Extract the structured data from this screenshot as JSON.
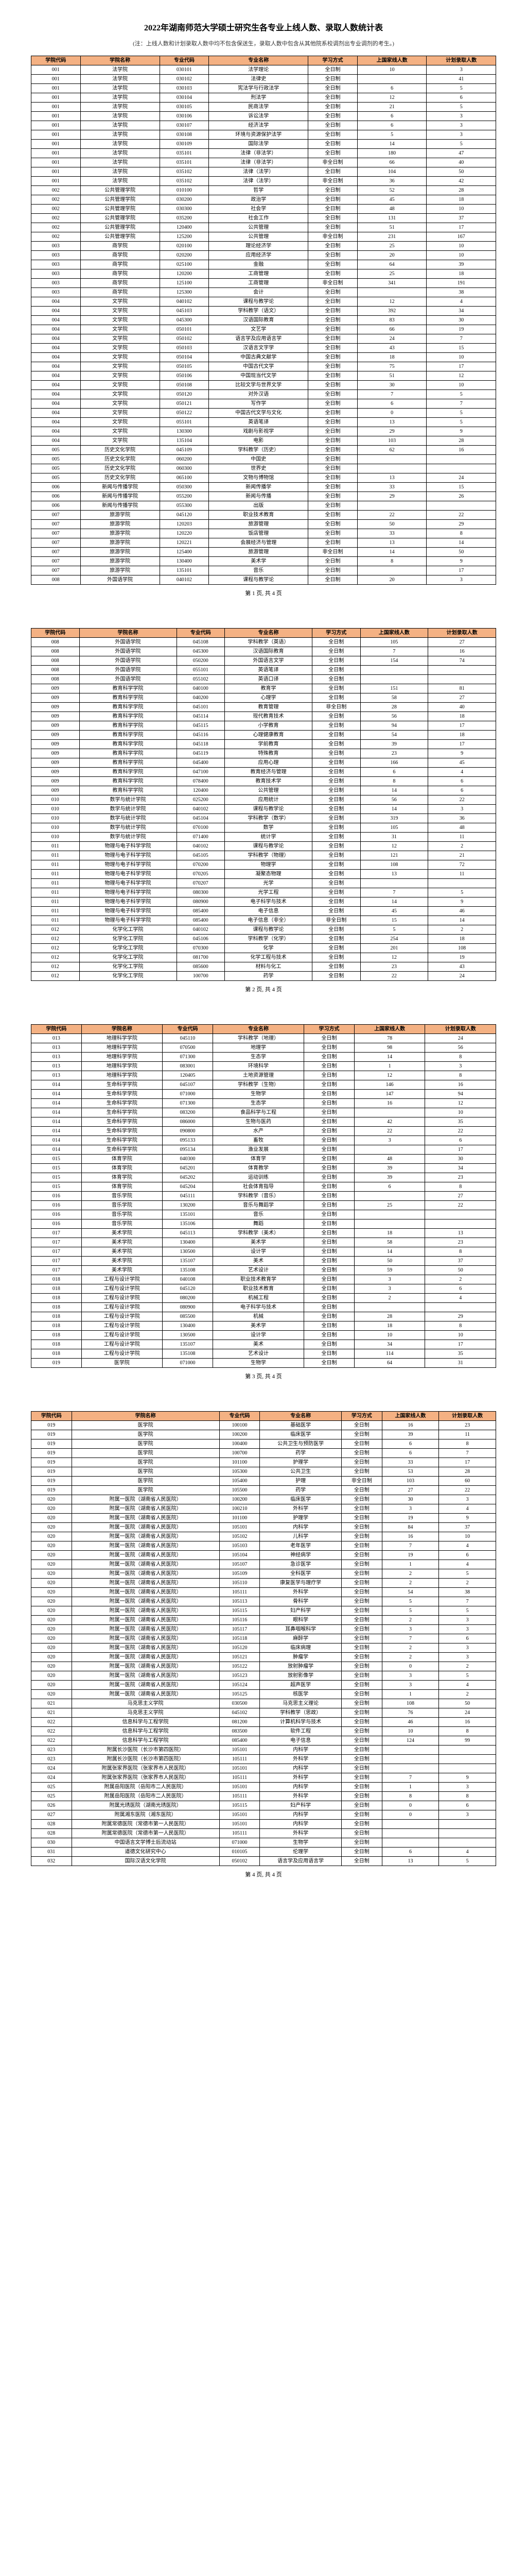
{
  "title": "2022年湖南师范大学硕士研究生各专业上线人数、录取人数统计表",
  "note": "(注：上线人数和计划录取人数中均不包含保送生，录取人数中包含从其他院系校调剂出专业调剂的考生。)",
  "footer_prefix": "第",
  "footer_suffix": "页, 共 4 页",
  "headers": {
    "col1": "学院代码",
    "col2": "学院名称",
    "col3": "专业代码",
    "col4": "专业名称",
    "col5": "学习方式",
    "col6": "上国家线人数",
    "col7": "计划录取人数"
  },
  "accent_color": "#f4b183",
  "border_color": "#000000",
  "rows_page1": [
    [
      "001",
      "法学院",
      "030101",
      "法学理论",
      "全日制",
      "10",
      "3"
    ],
    [
      "001",
      "法学院",
      "030102",
      "法律史",
      "全日制",
      "",
      "41"
    ],
    [
      "001",
      "法学院",
      "030103",
      "宪法学与行政法学",
      "全日制",
      "6",
      "5"
    ],
    [
      "001",
      "法学院",
      "030104",
      "刑法学",
      "全日制",
      "12",
      "6"
    ],
    [
      "001",
      "法学院",
      "030105",
      "民商法学",
      "全日制",
      "21",
      "5"
    ],
    [
      "001",
      "法学院",
      "030106",
      "诉讼法学",
      "全日制",
      "6",
      "3"
    ],
    [
      "001",
      "法学院",
      "030107",
      "经济法学",
      "全日制",
      "6",
      "3"
    ],
    [
      "001",
      "法学院",
      "030108",
      "环境与资源保护法学",
      "全日制",
      "5",
      "3"
    ],
    [
      "001",
      "法学院",
      "030109",
      "国际法学",
      "全日制",
      "14",
      "5"
    ],
    [
      "001",
      "法学院",
      "035101",
      "法律（非法学）",
      "全日制",
      "180",
      "47"
    ],
    [
      "001",
      "法学院",
      "035101",
      "法律（非法学）",
      "非全日制",
      "66",
      "40"
    ],
    [
      "001",
      "法学院",
      "035102",
      "法律（法学）",
      "全日制",
      "104",
      "50"
    ],
    [
      "001",
      "法学院",
      "035102",
      "法律（法学）",
      "非全日制",
      "36",
      "42"
    ],
    [
      "002",
      "公共管理学院",
      "010100",
      "哲学",
      "全日制",
      "52",
      "28"
    ],
    [
      "002",
      "公共管理学院",
      "030200",
      "政治学",
      "全日制",
      "45",
      "18"
    ],
    [
      "002",
      "公共管理学院",
      "030300",
      "社会学",
      "全日制",
      "48",
      "10"
    ],
    [
      "002",
      "公共管理学院",
      "035200",
      "社会工作",
      "全日制",
      "131",
      "37"
    ],
    [
      "002",
      "公共管理学院",
      "120400",
      "公共管理",
      "全日制",
      "51",
      "17"
    ],
    [
      "002",
      "公共管理学院",
      "125200",
      "公共管理",
      "非全日制",
      "231",
      "167"
    ],
    [
      "003",
      "商学院",
      "020100",
      "理论经济学",
      "全日制",
      "25",
      "10"
    ],
    [
      "003",
      "商学院",
      "020200",
      "应用经济学",
      "全日制",
      "20",
      "10"
    ],
    [
      "003",
      "商学院",
      "025100",
      "金融",
      "全日制",
      "64",
      "39"
    ],
    [
      "003",
      "商学院",
      "120200",
      "工商管理",
      "全日制",
      "25",
      "18"
    ],
    [
      "003",
      "商学院",
      "125100",
      "工商管理",
      "非全日制",
      "341",
      "191"
    ],
    [
      "003",
      "商学院",
      "125300",
      "会计",
      "全日制",
      "",
      "38"
    ],
    [
      "004",
      "文学院",
      "040102",
      "课程与教学论",
      "全日制",
      "12",
      "4"
    ],
    [
      "004",
      "文学院",
      "045103",
      "学科教学（语文）",
      "全日制",
      "392",
      "34"
    ],
    [
      "004",
      "文学院",
      "045300",
      "汉语国际教育",
      "全日制",
      "83",
      "30"
    ],
    [
      "004",
      "文学院",
      "050101",
      "文艺学",
      "全日制",
      "66",
      "19"
    ],
    [
      "004",
      "文学院",
      "050102",
      "语言学及应用语言学",
      "全日制",
      "24",
      "7"
    ],
    [
      "004",
      "文学院",
      "050103",
      "汉语言文字学",
      "全日制",
      "43",
      "15"
    ],
    [
      "004",
      "文学院",
      "050104",
      "中国古典文献学",
      "全日制",
      "18",
      "10"
    ],
    [
      "004",
      "文学院",
      "050105",
      "中国古代文学",
      "全日制",
      "75",
      "17"
    ],
    [
      "004",
      "文学院",
      "050106",
      "中国现当代文学",
      "全日制",
      "51",
      "12"
    ],
    [
      "004",
      "文学院",
      "050108",
      "比较文学与世界文学",
      "全日制",
      "30",
      "10"
    ],
    [
      "004",
      "文学院",
      "050120",
      "对外汉语",
      "全日制",
      "7",
      "5"
    ],
    [
      "004",
      "文学院",
      "050121",
      "写作学",
      "全日制",
      "6",
      "7"
    ],
    [
      "004",
      "文学院",
      "050122",
      "中国古代文学与文化",
      "全日制",
      "0",
      "5"
    ],
    [
      "004",
      "文学院",
      "055101",
      "英语笔译",
      "全日制",
      "13",
      "5"
    ],
    [
      "004",
      "文学院",
      "130300",
      "戏剧与影视学",
      "全日制",
      "29",
      "9"
    ],
    [
      "004",
      "文学院",
      "135104",
      "电影",
      "全日制",
      "103",
      "28"
    ],
    [
      "005",
      "历史文化学院",
      "045109",
      "学科教学（历史）",
      "全日制",
      "62",
      "16"
    ],
    [
      "005",
      "历史文化学院",
      "060200",
      "中国史",
      "全日制",
      "",
      ""
    ],
    [
      "005",
      "历史文化学院",
      "060300",
      "世界史",
      "全日制",
      "",
      ""
    ],
    [
      "005",
      "历史文化学院",
      "065100",
      "文物与博物馆",
      "全日制",
      "13",
      "24"
    ],
    [
      "006",
      "新闻与传播学院",
      "050300",
      "新闻传播学",
      "全日制",
      "33",
      "15"
    ],
    [
      "006",
      "新闻与传播学院",
      "055200",
      "新闻与传播",
      "全日制",
      "29",
      "26"
    ],
    [
      "006",
      "新闻与传播学院",
      "055300",
      "出版",
      "全日制",
      "",
      ""
    ],
    [
      "007",
      "旅游学院",
      "045120",
      "职业技术教育",
      "全日制",
      "22",
      "22"
    ],
    [
      "007",
      "旅游学院",
      "120203",
      "旅游管理",
      "全日制",
      "50",
      "29"
    ],
    [
      "007",
      "旅游学院",
      "120220",
      "饭店管理",
      "全日制",
      "33",
      "8"
    ],
    [
      "007",
      "旅游学院",
      "120221",
      "会展经济与管理",
      "全日制",
      "13",
      "14"
    ],
    [
      "007",
      "旅游学院",
      "125400",
      "旅游管理",
      "非全日制",
      "14",
      "50"
    ],
    [
      "007",
      "旅游学院",
      "130400",
      "美术学",
      "全日制",
      "8",
      "9"
    ],
    [
      "007",
      "旅游学院",
      "135101",
      "音乐",
      "全日制",
      "",
      "17"
    ],
    [
      "008",
      "外国语学院",
      "040102",
      "课程与教学论",
      "全日制",
      "20",
      "3"
    ]
  ],
  "rows_page2": [
    [
      "008",
      "外国语学院",
      "045108",
      "学科教学（英语）",
      "全日制",
      "105",
      "27"
    ],
    [
      "008",
      "外国语学院",
      "045300",
      "汉语国际教育",
      "全日制",
      "7",
      "16"
    ],
    [
      "008",
      "外国语学院",
      "050200",
      "外国语言文学",
      "全日制",
      "154",
      "74"
    ],
    [
      "008",
      "外国语学院",
      "055101",
      "英语笔译",
      "全日制",
      "",
      ""
    ],
    [
      "008",
      "外国语学院",
      "055102",
      "英语口译",
      "全日制",
      "",
      ""
    ],
    [
      "009",
      "教育科学学院",
      "040100",
      "教育学",
      "全日制",
      "151",
      "81"
    ],
    [
      "009",
      "教育科学学院",
      "040200",
      "心理学",
      "全日制",
      "58",
      "27"
    ],
    [
      "009",
      "教育科学学院",
      "045101",
      "教育管理",
      "非全日制",
      "28",
      "40"
    ],
    [
      "009",
      "教育科学学院",
      "045114",
      "现代教育技术",
      "全日制",
      "56",
      "18"
    ],
    [
      "009",
      "教育科学学院",
      "045115",
      "小学教育",
      "全日制",
      "94",
      "17"
    ],
    [
      "009",
      "教育科学学院",
      "045116",
      "心理健康教育",
      "全日制",
      "54",
      "18"
    ],
    [
      "009",
      "教育科学学院",
      "045118",
      "学前教育",
      "全日制",
      "39",
      "17"
    ],
    [
      "009",
      "教育科学学院",
      "045119",
      "特殊教育",
      "全日制",
      "23",
      "9"
    ],
    [
      "009",
      "教育科学学院",
      "045400",
      "应用心理",
      "全日制",
      "166",
      "45"
    ],
    [
      "009",
      "教育科学学院",
      "047100",
      "教育经济与管理",
      "全日制",
      "6",
      "4"
    ],
    [
      "009",
      "教育科学学院",
      "078400",
      "教育技术学",
      "全日制",
      "8",
      "6"
    ],
    [
      "009",
      "教育科学学院",
      "120400",
      "公共管理",
      "全日制",
      "14",
      "6"
    ],
    [
      "010",
      "数学与统计学院",
      "025200",
      "应用统计",
      "全日制",
      "56",
      "22"
    ],
    [
      "010",
      "数学与统计学院",
      "040102",
      "课程与教学论",
      "全日制",
      "14",
      "3"
    ],
    [
      "010",
      "数学与统计学院",
      "045104",
      "学科教学（数学）",
      "全日制",
      "319",
      "36"
    ],
    [
      "010",
      "数学与统计学院",
      "070100",
      "数学",
      "全日制",
      "105",
      "48"
    ],
    [
      "010",
      "数学与统计学院",
      "071400",
      "统计学",
      "全日制",
      "31",
      "11"
    ],
    [
      "011",
      "物理与电子科学学院",
      "040102",
      "课程与教学论",
      "全日制",
      "12",
      "2"
    ],
    [
      "011",
      "物理与电子科学学院",
      "045105",
      "学科教学（物理）",
      "全日制",
      "121",
      "21"
    ],
    [
      "011",
      "物理与电子科学学院",
      "070200",
      "物理学",
      "全日制",
      "108",
      "72"
    ],
    [
      "011",
      "物理与电子科学学院",
      "070205",
      "凝聚态物理",
      "全日制",
      "13",
      "11"
    ],
    [
      "011",
      "物理与电子科学学院",
      "070207",
      "光学",
      "全日制",
      "",
      ""
    ],
    [
      "011",
      "物理与电子科学学院",
      "080300",
      "光学工程",
      "全日制",
      "7",
      "5"
    ],
    [
      "011",
      "物理与电子科学学院",
      "080900",
      "电子科学与技术",
      "全日制",
      "14",
      "9"
    ],
    [
      "011",
      "物理与电子科学学院",
      "085400",
      "电子信息",
      "全日制",
      "45",
      "46"
    ],
    [
      "011",
      "物理与电子科学学院",
      "085400",
      "电子信息（非全）",
      "非全日制",
      "15",
      "14"
    ],
    [
      "012",
      "化学化工学院",
      "040102",
      "课程与教学论",
      "全日制",
      "5",
      "2"
    ],
    [
      "012",
      "化学化工学院",
      "045106",
      "学科教学（化学）",
      "全日制",
      "254",
      "18"
    ],
    [
      "012",
      "化学化工学院",
      "070300",
      "化学",
      "全日制",
      "201",
      "108"
    ],
    [
      "012",
      "化学化工学院",
      "081700",
      "化学工程与技术",
      "全日制",
      "12",
      "19"
    ],
    [
      "012",
      "化学化工学院",
      "085600",
      "材料与化工",
      "全日制",
      "23",
      "43"
    ],
    [
      "012",
      "化学化工学院",
      "100700",
      "药学",
      "全日制",
      "22",
      "24"
    ]
  ],
  "rows_page3": [
    [
      "013",
      "地理科学学院",
      "045110",
      "学科教学（地理）",
      "全日制",
      "78",
      "24"
    ],
    [
      "013",
      "地理科学学院",
      "070500",
      "地理学",
      "全日制",
      "98",
      "56"
    ],
    [
      "013",
      "地理科学学院",
      "071300",
      "生态学",
      "全日制",
      "14",
      "8"
    ],
    [
      "013",
      "地理科学学院",
      "083001",
      "环境科学",
      "全日制",
      "1",
      "3"
    ],
    [
      "013",
      "地理科学学院",
      "120405",
      "土地资源管理",
      "全日制",
      "12",
      "8"
    ],
    [
      "014",
      "生命科学学院",
      "045107",
      "学科教学（生物）",
      "全日制",
      "146",
      "16"
    ],
    [
      "014",
      "生命科学学院",
      "071000",
      "生物学",
      "全日制",
      "147",
      "94"
    ],
    [
      "014",
      "生命科学学院",
      "071300",
      "生态学",
      "全日制",
      "16",
      "12"
    ],
    [
      "014",
      "生命科学学院",
      "083200",
      "食品科学与工程",
      "全日制",
      "",
      "10"
    ],
    [
      "014",
      "生命科学学院",
      "086000",
      "生物与医药",
      "全日制",
      "42",
      "35"
    ],
    [
      "014",
      "生命科学学院",
      "090800",
      "水产",
      "全日制",
      "22",
      "22"
    ],
    [
      "014",
      "生命科学学院",
      "095133",
      "畜牧",
      "全日制",
      "3",
      "6"
    ],
    [
      "014",
      "生命科学学院",
      "095134",
      "渔业发展",
      "全日制",
      "",
      "17"
    ],
    [
      "015",
      "体育学院",
      "040300",
      "体育学",
      "全日制",
      "48",
      "30"
    ],
    [
      "015",
      "体育学院",
      "045201",
      "体育教学",
      "全日制",
      "39",
      "34"
    ],
    [
      "015",
      "体育学院",
      "045202",
      "运动训练",
      "全日制",
      "39",
      "23"
    ],
    [
      "015",
      "体育学院",
      "045204",
      "社会体育指导",
      "全日制",
      "6",
      "8"
    ],
    [
      "016",
      "音乐学院",
      "045111",
      "学科教学（音乐）",
      "全日制",
      "",
      "27"
    ],
    [
      "016",
      "音乐学院",
      "130200",
      "音乐与舞蹈学",
      "全日制",
      "25",
      "22"
    ],
    [
      "016",
      "音乐学院",
      "135101",
      "音乐",
      "全日制",
      "",
      ""
    ],
    [
      "016",
      "音乐学院",
      "135106",
      "舞蹈",
      "全日制",
      "",
      ""
    ],
    [
      "017",
      "美术学院",
      "045113",
      "学科教学（美术）",
      "全日制",
      "18",
      "13"
    ],
    [
      "017",
      "美术学院",
      "130400",
      "美术学",
      "全日制",
      "58",
      "23"
    ],
    [
      "017",
      "美术学院",
      "130500",
      "设计学",
      "全日制",
      "14",
      "8"
    ],
    [
      "017",
      "美术学院",
      "135107",
      "美术",
      "全日制",
      "50",
      "37"
    ],
    [
      "017",
      "美术学院",
      "135108",
      "艺术设计",
      "全日制",
      "59",
      "50"
    ],
    [
      "018",
      "工程与设计学院",
      "040108",
      "职业技术教育学",
      "全日制",
      "3",
      "2"
    ],
    [
      "018",
      "工程与设计学院",
      "045120",
      "职业技术教育",
      "全日制",
      "3",
      "6"
    ],
    [
      "018",
      "工程与设计学院",
      "080200",
      "机械工程",
      "全日制",
      "2",
      "4"
    ],
    [
      "018",
      "工程与设计学院",
      "080900",
      "电子科学与技术",
      "全日制",
      "",
      ""
    ],
    [
      "018",
      "工程与设计学院",
      "085500",
      "机械",
      "全日制",
      "28",
      "29"
    ],
    [
      "018",
      "工程与设计学院",
      "130400",
      "美术学",
      "全日制",
      "18",
      "8"
    ],
    [
      "018",
      "工程与设计学院",
      "130500",
      "设计学",
      "全日制",
      "10",
      "10"
    ],
    [
      "018",
      "工程与设计学院",
      "135107",
      "美术",
      "全日制",
      "34",
      "17"
    ],
    [
      "018",
      "工程与设计学院",
      "135108",
      "艺术设计",
      "全日制",
      "114",
      "35"
    ],
    [
      "019",
      "医学院",
      "071000",
      "生物学",
      "全日制",
      "64",
      "31"
    ]
  ],
  "rows_page4": [
    [
      "019",
      "医学院",
      "100100",
      "基础医学",
      "全日制",
      "16",
      "23"
    ],
    [
      "019",
      "医学院",
      "100200",
      "临床医学",
      "全日制",
      "39",
      "11"
    ],
    [
      "019",
      "医学院",
      "100400",
      "公共卫生与预防医学",
      "全日制",
      "6",
      "8"
    ],
    [
      "019",
      "医学院",
      "100700",
      "药学",
      "全日制",
      "6",
      "7"
    ],
    [
      "019",
      "医学院",
      "101100",
      "护理学",
      "全日制",
      "33",
      "17"
    ],
    [
      "019",
      "医学院",
      "105300",
      "公共卫生",
      "全日制",
      "53",
      "28"
    ],
    [
      "019",
      "医学院",
      "105400",
      "护理",
      "非全日制",
      "103",
      "60"
    ],
    [
      "019",
      "医学院",
      "105500",
      "药学",
      "全日制",
      "27",
      "22"
    ],
    [
      "020",
      "附属一医院（湖南省人民医院）",
      "100200",
      "临床医学",
      "全日制",
      "30",
      "3"
    ],
    [
      "020",
      "附属一医院（湖南省人民医院）",
      "100210",
      "外科学",
      "全日制",
      "3",
      "4"
    ],
    [
      "020",
      "附属一医院（湖南省人民医院）",
      "101100",
      "护理学",
      "全日制",
      "19",
      "9"
    ],
    [
      "020",
      "附属一医院（湖南省人民医院）",
      "105101",
      "内科学",
      "全日制",
      "84",
      "37"
    ],
    [
      "020",
      "附属一医院（湖南省人民医院）",
      "105102",
      "儿科学",
      "全日制",
      "16",
      "10"
    ],
    [
      "020",
      "附属一医院（湖南省人民医院）",
      "105103",
      "老年医学",
      "全日制",
      "7",
      "4"
    ],
    [
      "020",
      "附属一医院（湖南省人民医院）",
      "105104",
      "神经病学",
      "全日制",
      "19",
      "6"
    ],
    [
      "020",
      "附属一医院（湖南省人民医院）",
      "105107",
      "急诊医学",
      "全日制",
      "1",
      "4"
    ],
    [
      "020",
      "附属一医院（湖南省人民医院）",
      "105109",
      "全科医学",
      "全日制",
      "2",
      "5"
    ],
    [
      "020",
      "附属一医院（湖南省人民医院）",
      "105110",
      "康复医学与理疗学",
      "全日制",
      "2",
      "2"
    ],
    [
      "020",
      "附属一医院（湖南省人民医院）",
      "105111",
      "外科学",
      "全日制",
      "54",
      "38"
    ],
    [
      "020",
      "附属一医院（湖南省人民医院）",
      "105113",
      "骨科学",
      "全日制",
      "5",
      "7"
    ],
    [
      "020",
      "附属一医院（湖南省人民医院）",
      "105115",
      "妇产科学",
      "全日制",
      "5",
      "5"
    ],
    [
      "020",
      "附属一医院（湖南省人民医院）",
      "105116",
      "眼科学",
      "全日制",
      "2",
      "3"
    ],
    [
      "020",
      "附属一医院（湖南省人民医院）",
      "105117",
      "耳鼻咽喉科学",
      "全日制",
      "3",
      "3"
    ],
    [
      "020",
      "附属一医院（湖南省人民医院）",
      "105118",
      "麻醉学",
      "全日制",
      "7",
      "6"
    ],
    [
      "020",
      "附属一医院（湖南省人民医院）",
      "105120",
      "临床病理",
      "全日制",
      "2",
      "3"
    ],
    [
      "020",
      "附属一医院（湖南省人民医院）",
      "105121",
      "肿瘤学",
      "全日制",
      "2",
      "3"
    ],
    [
      "020",
      "附属一医院（湖南省人民医院）",
      "105122",
      "放射肿瘤学",
      "全日制",
      "0",
      "2"
    ],
    [
      "020",
      "附属一医院（湖南省人民医院）",
      "105123",
      "放射影像学",
      "全日制",
      "3",
      "5"
    ],
    [
      "020",
      "附属一医院（湖南省人民医院）",
      "105124",
      "超声医学",
      "全日制",
      "3",
      "4"
    ],
    [
      "020",
      "附属一医院（湖南省人民医院）",
      "105125",
      "核医学",
      "全日制",
      "1",
      "2"
    ],
    [
      "021",
      "马克思主义学院",
      "030500",
      "马克思主义理论",
      "全日制",
      "108",
      "50"
    ],
    [
      "021",
      "马克思主义学院",
      "045102",
      "学科教学（思政）",
      "全日制",
      "76",
      "24"
    ],
    [
      "022",
      "信息科学与工程学院",
      "081200",
      "计算机科学与技术",
      "全日制",
      "46",
      "16"
    ],
    [
      "022",
      "信息科学与工程学院",
      "083500",
      "软件工程",
      "全日制",
      "10",
      "8"
    ],
    [
      "022",
      "信息科学与工程学院",
      "085400",
      "电子信息",
      "全日制",
      "124",
      "99"
    ],
    [
      "023",
      "附属长沙医院（长沙市第四医院）",
      "105101",
      "内科学",
      "全日制",
      "",
      ""
    ],
    [
      "023",
      "附属长沙医院（长沙市第四医院）",
      "105111",
      "外科学",
      "全日制",
      "",
      ""
    ],
    [
      "024",
      "附属张家界医院（张家界市人民医院）",
      "105101",
      "内科学",
      "全日制",
      "",
      ""
    ],
    [
      "024",
      "附属张家界医院（张家界市人民医院）",
      "105111",
      "外科学",
      "全日制",
      "7",
      "9"
    ],
    [
      "025",
      "附属岳阳医院（岳阳市二人民医院）",
      "105101",
      "内科学",
      "全日制",
      "1",
      "3"
    ],
    [
      "025",
      "附属岳阳医院（岳阳市二人民医院）",
      "105111",
      "外科学",
      "全日制",
      "8",
      "8"
    ],
    [
      "026",
      "附属光琇医院（湖南光琇医院）",
      "105115",
      "妇产科学",
      "全日制",
      "0",
      "6"
    ],
    [
      "027",
      "附属湘东医院（湘东医院）",
      "105101",
      "内科学",
      "全日制",
      "0",
      "3"
    ],
    [
      "028",
      "附属常德医院（常德市第一人民医院）",
      "105101",
      "内科学",
      "全日制",
      "",
      ""
    ],
    [
      "028",
      "附属常德医院（常德市第一人民医院）",
      "105111",
      "外科学",
      "全日制",
      "",
      ""
    ],
    [
      "030",
      "中国语言文学博士后流动站",
      "071000",
      "生物学",
      "全日制",
      "",
      ""
    ],
    [
      "031",
      "道德文化研究中心",
      "010105",
      "伦理学",
      "全日制",
      "6",
      "4"
    ],
    [
      "032",
      "国际汉语文化学院",
      "050102",
      "语言学及应用语言学",
      "全日制",
      "13",
      "5"
    ]
  ]
}
